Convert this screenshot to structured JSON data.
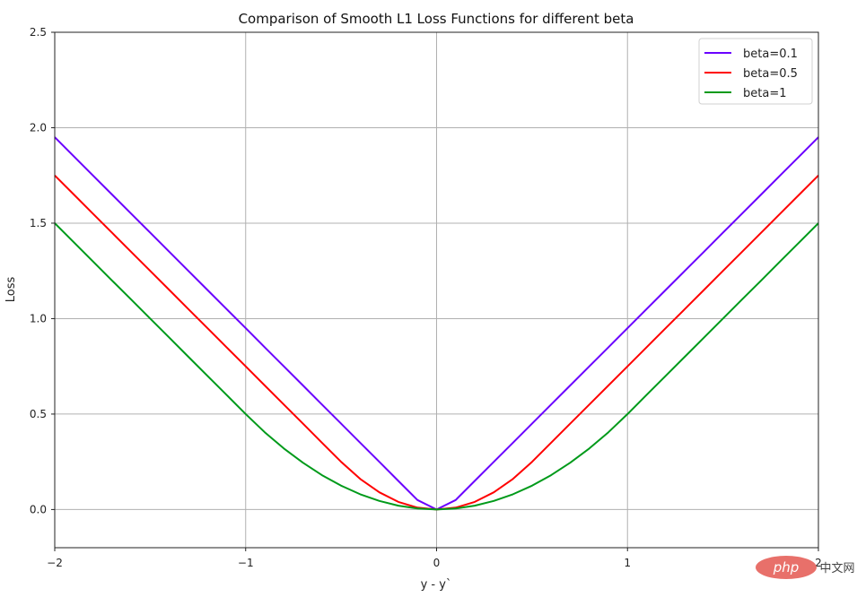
{
  "chart_data": {
    "type": "line",
    "title": "Comparison of Smooth L1 Loss Functions for different beta",
    "xlabel": "y - y`",
    "ylabel": "Loss",
    "xlim": [
      -2,
      2
    ],
    "ylim": [
      -0.2,
      2.5
    ],
    "grid": true,
    "legend_placement": "top-right",
    "xticks": [
      -2,
      -1,
      0,
      1,
      2
    ],
    "xtick_labels": [
      "−2",
      "−1",
      "0",
      "1",
      "2"
    ],
    "yticks": [
      0.0,
      0.5,
      1.0,
      1.5,
      2.0,
      2.5
    ],
    "ytick_labels": [
      "0.0",
      "0.5",
      "1.0",
      "1.5",
      "2.0",
      "2.5"
    ],
    "x": [
      -2,
      -1.9,
      -1.8,
      -1.7,
      -1.6,
      -1.5,
      -1.4,
      -1.3,
      -1.2,
      -1.1,
      -1,
      -0.9,
      -0.8,
      -0.7,
      -0.6,
      -0.5,
      -0.4,
      -0.3,
      -0.2,
      -0.1,
      0,
      0.1,
      0.2,
      0.3,
      0.4,
      0.5,
      0.6,
      0.7,
      0.8,
      0.9,
      1,
      1.1,
      1.2,
      1.3,
      1.4,
      1.5,
      1.6,
      1.7,
      1.8,
      1.9,
      2
    ],
    "series": [
      {
        "name": "beta=0.1",
        "color": "#6a00ff",
        "values": [
          1.95,
          1.85,
          1.75,
          1.65,
          1.55,
          1.45,
          1.35,
          1.25,
          1.15,
          1.05,
          0.95,
          0.85,
          0.75,
          0.65,
          0.55,
          0.45,
          0.35,
          0.25,
          0.15,
          0.05,
          0,
          0.05,
          0.15,
          0.25,
          0.35,
          0.45,
          0.55,
          0.65,
          0.75,
          0.85,
          0.95,
          1.05,
          1.15,
          1.25,
          1.35,
          1.45,
          1.55,
          1.65,
          1.75,
          1.85,
          1.95
        ]
      },
      {
        "name": "beta=0.5",
        "color": "#ff0000",
        "values": [
          1.75,
          1.65,
          1.55,
          1.45,
          1.35,
          1.25,
          1.15,
          1.05,
          0.95,
          0.85,
          0.75,
          0.65,
          0.55,
          0.45,
          0.35,
          0.25,
          0.16,
          0.09,
          0.04,
          0.01,
          0,
          0.01,
          0.04,
          0.09,
          0.16,
          0.25,
          0.35,
          0.45,
          0.55,
          0.65,
          0.75,
          0.85,
          0.95,
          1.05,
          1.15,
          1.25,
          1.35,
          1.45,
          1.55,
          1.65,
          1.75
        ]
      },
      {
        "name": "beta=1",
        "color": "#009a1a",
        "values": [
          1.5,
          1.4,
          1.3,
          1.2,
          1.1,
          1.0,
          0.9,
          0.8,
          0.7,
          0.6,
          0.5,
          0.405,
          0.32,
          0.245,
          0.18,
          0.125,
          0.08,
          0.045,
          0.02,
          0.005,
          0,
          0.005,
          0.02,
          0.045,
          0.08,
          0.125,
          0.18,
          0.245,
          0.32,
          0.405,
          0.5,
          0.6,
          0.7,
          0.8,
          0.9,
          1.0,
          1.1,
          1.2,
          1.3,
          1.4,
          1.5
        ]
      }
    ]
  },
  "watermark": {
    "text": "php中文网",
    "color": "#e8706a"
  }
}
